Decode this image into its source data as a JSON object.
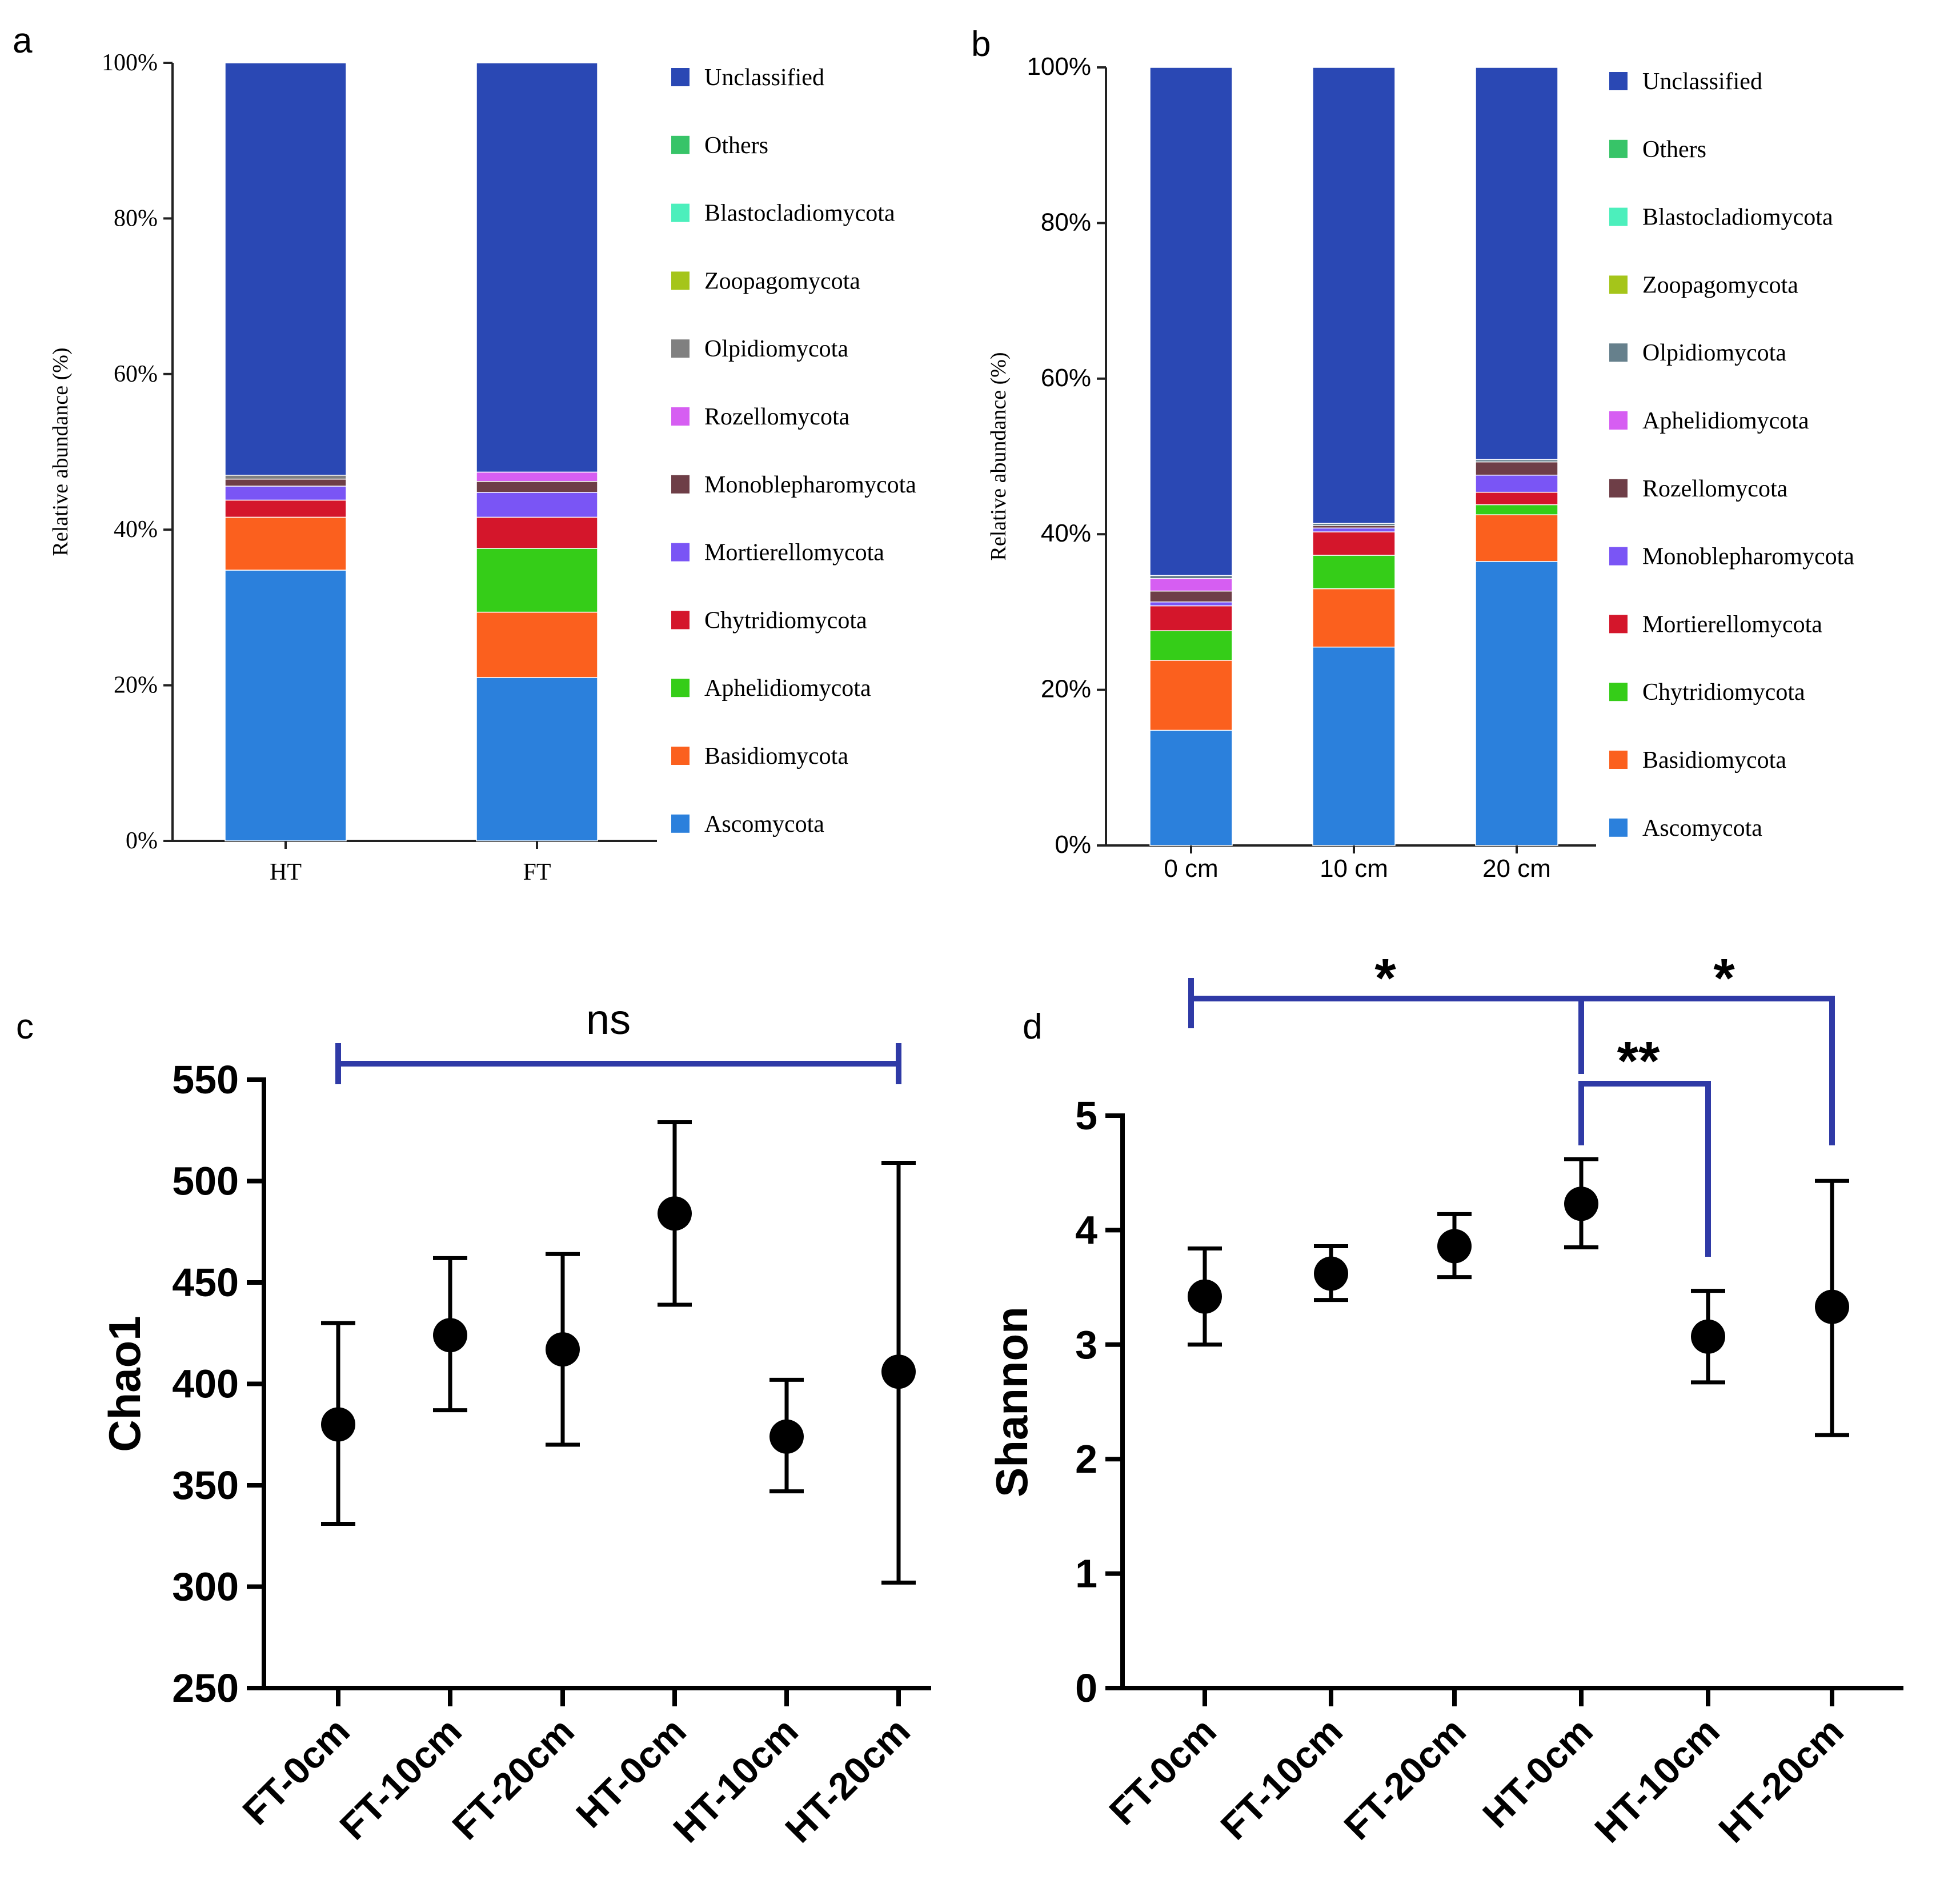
{
  "chart_data": [
    {
      "panel": "a",
      "type": "stacked-bar",
      "ylabel": "Relative abundance (%)",
      "xlabel": "",
      "ylim": [
        0,
        100
      ],
      "yticks": [
        "0%",
        "20%",
        "40%",
        "60%",
        "80%",
        "100%"
      ],
      "categories": [
        "HT",
        "FT"
      ],
      "series": [
        {
          "name": "Ascomycota",
          "color": "#2b80dc",
          "values": [
            34.8,
            21.0
          ]
        },
        {
          "name": "Basidiomycota",
          "color": "#fb601e",
          "values": [
            6.8,
            8.4
          ]
        },
        {
          "name": "Aphelidiomycota",
          "color": "#35cd18",
          "values": [
            0.0,
            8.2
          ]
        },
        {
          "name": "Chytridiomycota",
          "color": "#d4162b",
          "values": [
            2.2,
            4.0
          ]
        },
        {
          "name": "Mortierellomycota",
          "color": "#7a55f5",
          "values": [
            1.8,
            3.2
          ]
        },
        {
          "name": "Monoblepharomycota",
          "color": "#6e3e47",
          "values": [
            0.9,
            1.4
          ]
        },
        {
          "name": "Rozellomycota",
          "color": "#d65ef2",
          "values": [
            0.0,
            1.2
          ]
        },
        {
          "name": "Olpidiomycota",
          "color": "#808080",
          "values": [
            0.5,
            0.0
          ]
        },
        {
          "name": "Zoopagomycota",
          "color": "#a5c51a",
          "values": [
            0.0,
            0.0
          ]
        },
        {
          "name": "Blastocladiomycota",
          "color": "#4cefbc",
          "values": [
            0.0,
            0.0
          ]
        },
        {
          "name": "Others",
          "color": "#37c468",
          "values": [
            0.0,
            0.0
          ]
        },
        {
          "name": "Unclassified",
          "color": "#2a48b4",
          "values": [
            53.0,
            52.6
          ]
        }
      ],
      "legend_position": "right"
    },
    {
      "panel": "b",
      "type": "stacked-bar",
      "ylabel": "Relative abundance (%)",
      "xlabel": "",
      "ylim": [
        0,
        100
      ],
      "yticks": [
        "0%",
        "20%",
        "40%",
        "60%",
        "80%",
        "100%"
      ],
      "categories": [
        "0 cm",
        "10 cm",
        "20 cm"
      ],
      "series": [
        {
          "name": "Ascomycota",
          "color": "#2b80dc",
          "values": [
            14.8,
            25.5,
            36.5
          ]
        },
        {
          "name": "Basidiomycota",
          "color": "#fb601e",
          "values": [
            9.0,
            7.5,
            6.0
          ]
        },
        {
          "name": "Chytridiomycota",
          "color": "#35cd18",
          "values": [
            3.8,
            4.3,
            1.3
          ]
        },
        {
          "name": "Mortierellomycota",
          "color": "#d4162b",
          "values": [
            3.2,
            3.0,
            1.6
          ]
        },
        {
          "name": "Monoblepharomycota",
          "color": "#7a55f5",
          "values": [
            0.5,
            0.5,
            2.2
          ]
        },
        {
          "name": "Rozellomycota",
          "color": "#6e3e47",
          "values": [
            1.4,
            0.3,
            1.7
          ]
        },
        {
          "name": "Aphelidiomycota",
          "color": "#d65ef2",
          "values": [
            1.6,
            0.0,
            0.0
          ]
        },
        {
          "name": "Olpidiomycota",
          "color": "#66808c",
          "values": [
            0.4,
            0.3,
            0.3
          ]
        },
        {
          "name": "Zoopagomycota",
          "color": "#a5c51a",
          "values": [
            0.0,
            0.0,
            0.0
          ]
        },
        {
          "name": "Blastocladiomycota",
          "color": "#4cefbc",
          "values": [
            0.0,
            0.0,
            0.0
          ]
        },
        {
          "name": "Others",
          "color": "#37c468",
          "values": [
            0.0,
            0.0,
            0.0
          ]
        },
        {
          "name": "Unclassified",
          "color": "#2a48b4",
          "values": [
            65.3,
            58.6,
            50.4
          ]
        }
      ],
      "legend_position": "right"
    },
    {
      "panel": "c",
      "type": "scatter",
      "ylabel": "Chao1",
      "xlabel": "",
      "ylim": [
        250,
        550
      ],
      "yticks": [
        250,
        300,
        350,
        400,
        450,
        500,
        550
      ],
      "categories": [
        "FT-0cm",
        "FT-10cm",
        "FT-20cm",
        "HT-0cm",
        "HT-10cm",
        "HT-20cm"
      ],
      "values": [
        380,
        424,
        417,
        484,
        374,
        406
      ],
      "err_low": [
        331,
        387,
        370,
        439,
        347,
        302
      ],
      "err_high": [
        430,
        462,
        464,
        529,
        402,
        509
      ],
      "significance": [
        {
          "from": 0,
          "to": 5,
          "label": "ns"
        }
      ]
    },
    {
      "panel": "d",
      "type": "scatter",
      "ylabel": "Shannon",
      "xlabel": "",
      "ylim": [
        0,
        5
      ],
      "yticks": [
        0,
        1,
        2,
        3,
        4,
        5
      ],
      "categories": [
        "FT-0cm",
        "FT-10cm",
        "FT-20cm",
        "HT-0cm",
        "HT-10cm",
        "HT-20cm"
      ],
      "values": [
        3.42,
        3.62,
        3.86,
        4.23,
        3.07,
        3.33
      ],
      "err_low": [
        3.0,
        3.39,
        3.59,
        3.85,
        2.67,
        2.21
      ],
      "err_high": [
        3.84,
        3.86,
        4.14,
        4.62,
        3.47,
        4.43
      ],
      "significance": [
        {
          "from": 0,
          "to": 3,
          "label": "*"
        },
        {
          "from": 3,
          "to": 5,
          "label": "*"
        },
        {
          "from": 3,
          "to": 4,
          "label": "**"
        }
      ]
    }
  ],
  "panel_letters": [
    "a",
    "b",
    "c",
    "d"
  ]
}
